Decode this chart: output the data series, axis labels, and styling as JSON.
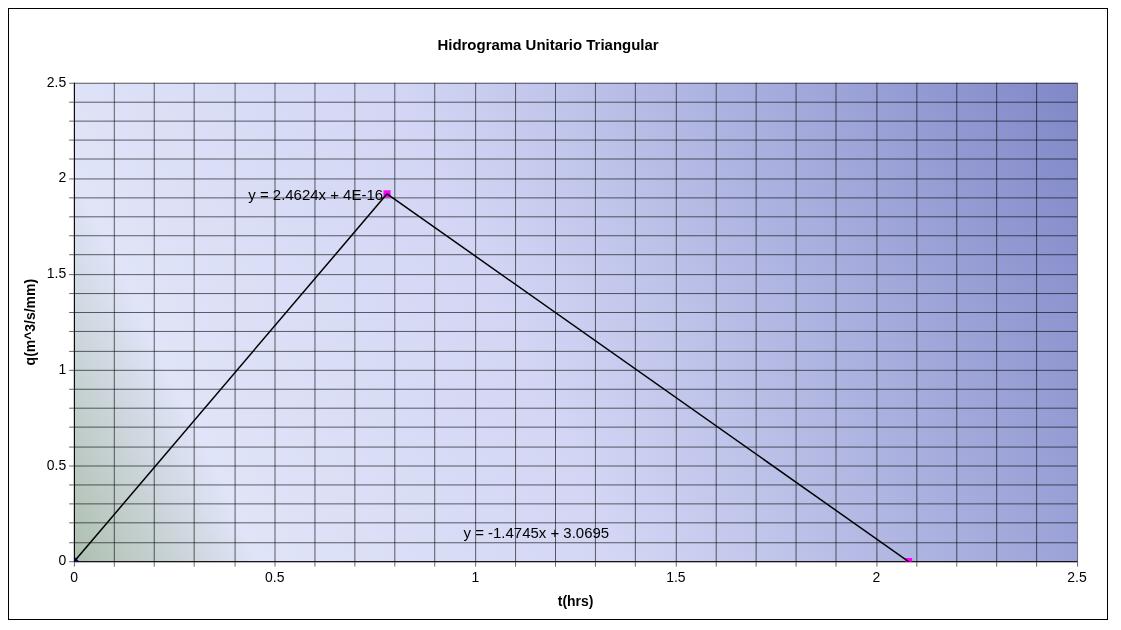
{
  "chart_data": {
    "type": "line",
    "title": "Hidrograma Unitario Triangular",
    "xlabel": "t(hrs)",
    "ylabel": "q(m^3/s/mm)",
    "series": [
      {
        "color": "#000000",
        "x": [
          0,
          0.78
        ],
        "values": [
          0,
          1.92
        ],
        "marker": "none"
      },
      {
        "color": "#000000",
        "x": [
          0.78,
          2.08
        ],
        "values": [
          1.92,
          0
        ],
        "marker": "none"
      },
      {
        "type": "scatter",
        "color": "#000080",
        "x": [
          0
        ],
        "values": [
          0
        ],
        "marker": "diamond"
      },
      {
        "type": "scatter",
        "color": "#ff00ff",
        "x": [
          0.78,
          2.08
        ],
        "values": [
          1.92,
          0
        ],
        "marker": "square"
      }
    ],
    "xlim": [
      0,
      2.5
    ],
    "ylim": [
      0,
      2.5
    ],
    "xticks": [
      0,
      {
        "value": 0.1,
        "label": null
      },
      {
        "value": 0.2,
        "label": null
      },
      {
        "value": 0.3,
        "label": null
      },
      {
        "value": 0.4,
        "label": null
      },
      0.5,
      {
        "value": 0.6,
        "label": null
      },
      {
        "value": 0.7,
        "label": null
      },
      {
        "value": 0.8,
        "label": null
      },
      {
        "value": 0.9,
        "label": null
      },
      1,
      {
        "value": 1.1,
        "label": null
      },
      {
        "value": 1.2,
        "label": null
      },
      {
        "value": 1.3,
        "label": null
      },
      {
        "value": 1.4,
        "label": null
      },
      1.5,
      {
        "value": 1.6,
        "label": null
      },
      {
        "value": 1.7,
        "label": null
      },
      {
        "value": 1.8,
        "label": null
      },
      {
        "value": 1.9,
        "label": null
      },
      2,
      {
        "value": 2.1,
        "label": null
      },
      {
        "value": 2.2,
        "label": null
      },
      {
        "value": 2.3,
        "label": null
      },
      {
        "value": 2.4,
        "label": null
      },
      2.5
    ],
    "yticks": [
      0,
      {
        "value": 0.1,
        "label": null
      },
      {
        "value": 0.2,
        "label": null
      },
      {
        "value": 0.3,
        "label": null
      },
      {
        "value": 0.4,
        "label": null
      },
      0.5,
      {
        "value": 0.6,
        "label": null
      },
      {
        "value": 0.7,
        "label": null
      },
      {
        "value": 0.8,
        "label": null
      },
      {
        "value": 0.9,
        "label": null
      },
      1,
      {
        "value": 1.1,
        "label": null
      },
      {
        "value": 1.2,
        "label": null
      },
      {
        "value": 1.3,
        "label": null
      },
      {
        "value": 1.4,
        "label": null
      },
      1.5,
      {
        "value": 1.6,
        "label": null
      },
      {
        "value": 1.7,
        "label": null
      },
      {
        "value": 1.8,
        "label": null
      },
      {
        "value": 1.9,
        "label": null
      },
      2,
      {
        "value": 2.1,
        "label": null
      },
      {
        "value": 2.2,
        "label": null
      },
      {
        "value": 2.3,
        "label": null
      },
      {
        "value": 2.4,
        "label": null
      },
      2.5
    ],
    "grid": true,
    "legend": false,
    "annotations": [
      "y = 2.4624x + 4E-16",
      "y = -1.4745x + 3.0695"
    ]
  }
}
